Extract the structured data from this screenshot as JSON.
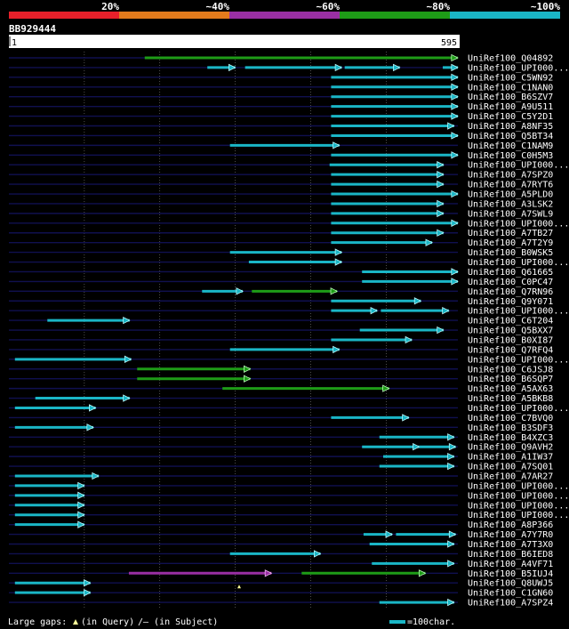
{
  "legend": {
    "segments": [
      {
        "label": "20%",
        "color": "#e8202a"
      },
      {
        "label": "~40%",
        "color": "#e37b1c"
      },
      {
        "label": "~60%",
        "color": "#9a2fa4"
      },
      {
        "label": "~80%",
        "color": "#1e9c17"
      },
      {
        "label": "~100%",
        "color": "#1ab6c6"
      }
    ]
  },
  "query": {
    "id": "BB929444",
    "start_label": "1",
    "end_label": "595",
    "length": 595
  },
  "colors": {
    "cyan": "#1ab6c6",
    "green": "#1e9c17",
    "magenta": "#9a2fa4",
    "row_line": "#101050",
    "grid": "#808080"
  },
  "hits": [
    {
      "name": "UniRef100_Q04892",
      "segs": [
        [
          180,
          595,
          "green"
        ]
      ]
    },
    {
      "name": "UniRef100_UPI000...",
      "segs": [
        [
          263,
          300,
          "cyan"
        ],
        [
          313,
          441,
          "cyan"
        ],
        [
          445,
          518,
          "cyan"
        ],
        [
          575,
          595,
          "cyan"
        ]
      ]
    },
    {
      "name": "UniRef100_C5WN92",
      "segs": [
        [
          427,
          595,
          "cyan"
        ]
      ]
    },
    {
      "name": "UniRef100_C1NAN0",
      "segs": [
        [
          427,
          595,
          "cyan"
        ]
      ]
    },
    {
      "name": "UniRef100_B6SZV7",
      "segs": [
        [
          427,
          595,
          "cyan"
        ]
      ]
    },
    {
      "name": "UniRef100_A9U511",
      "segs": [
        [
          427,
          595,
          "cyan"
        ]
      ]
    },
    {
      "name": "UniRef100_C5Y2D1",
      "segs": [
        [
          427,
          595,
          "cyan"
        ]
      ]
    },
    {
      "name": "UniRef100_A8NF35",
      "segs": [
        [
          427,
          590,
          "cyan"
        ]
      ]
    },
    {
      "name": "UniRef100_Q5BT34",
      "segs": [
        [
          427,
          595,
          "cyan"
        ]
      ]
    },
    {
      "name": "UniRef100_C1NAM9",
      "segs": [
        [
          293,
          438,
          "cyan"
        ]
      ]
    },
    {
      "name": "UniRef100_C0H5M3",
      "segs": [
        [
          427,
          595,
          "cyan"
        ]
      ]
    },
    {
      "name": "UniRef100_UPI000...",
      "segs": [
        [
          425,
          576,
          "cyan"
        ]
      ]
    },
    {
      "name": "UniRef100_A7SPZ0",
      "segs": [
        [
          427,
          576,
          "cyan"
        ]
      ]
    },
    {
      "name": "UniRef100_A7RYT6",
      "segs": [
        [
          427,
          576,
          "cyan"
        ]
      ]
    },
    {
      "name": "UniRef100_A5PLD0",
      "segs": [
        [
          427,
          595,
          "cyan"
        ]
      ]
    },
    {
      "name": "UniRef100_A3LSK2",
      "segs": [
        [
          427,
          576,
          "cyan"
        ]
      ]
    },
    {
      "name": "UniRef100_A7SWL9",
      "segs": [
        [
          427,
          576,
          "cyan"
        ]
      ]
    },
    {
      "name": "UniRef100_UPI000...",
      "segs": [
        [
          427,
          595,
          "cyan"
        ]
      ]
    },
    {
      "name": "UniRef100_A7TB27",
      "segs": [
        [
          427,
          576,
          "cyan"
        ]
      ]
    },
    {
      "name": "UniRef100_A7T2Y9",
      "segs": [
        [
          427,
          561,
          "cyan"
        ]
      ]
    },
    {
      "name": "UniRef100_B0WSK5",
      "segs": [
        [
          293,
          441,
          "cyan"
        ]
      ]
    },
    {
      "name": "UniRef100_UPI000...",
      "segs": [
        [
          318,
          441,
          "cyan"
        ]
      ]
    },
    {
      "name": "UniRef100_Q61665",
      "segs": [
        [
          468,
          595,
          "cyan"
        ]
      ]
    },
    {
      "name": "UniRef100_C0PC47",
      "segs": [
        [
          468,
          595,
          "cyan"
        ]
      ]
    },
    {
      "name": "UniRef100_Q7RN96",
      "segs": [
        [
          256,
          310,
          "cyan"
        ],
        [
          322,
          435,
          "green"
        ]
      ]
    },
    {
      "name": "UniRef100_Q9Y071",
      "segs": [
        [
          427,
          546,
          "cyan"
        ]
      ]
    },
    {
      "name": "UniRef100_UPI000...",
      "segs": [
        [
          427,
          488,
          "cyan"
        ],
        [
          493,
          583,
          "cyan"
        ]
      ]
    },
    {
      "name": "UniRef100_C6T204",
      "segs": [
        [
          51,
          160,
          "cyan"
        ]
      ]
    },
    {
      "name": "UniRef100_Q5BXX7",
      "segs": [
        [
          465,
          576,
          "cyan"
        ]
      ]
    },
    {
      "name": "UniRef100_B0XI87",
      "segs": [
        [
          427,
          534,
          "cyan"
        ]
      ]
    },
    {
      "name": "UniRef100_Q7RFQ4",
      "segs": [
        [
          293,
          438,
          "cyan"
        ]
      ]
    },
    {
      "name": "UniRef100_UPI000...",
      "segs": [
        [
          8,
          162,
          "cyan"
        ]
      ]
    },
    {
      "name": "UniRef100_C6JSJ8",
      "segs": [
        [
          170,
          320,
          "green"
        ]
      ]
    },
    {
      "name": "UniRef100_B6SQP7",
      "segs": [
        [
          170,
          320,
          "green"
        ]
      ]
    },
    {
      "name": "UniRef100_A5AX63",
      "segs": [
        [
          283,
          504,
          "green"
        ]
      ]
    },
    {
      "name": "UniRef100_A5BKB8",
      "segs": [
        [
          35,
          160,
          "cyan"
        ]
      ]
    },
    {
      "name": "UniRef100_UPI000...",
      "segs": [
        [
          8,
          115,
          "cyan"
        ]
      ]
    },
    {
      "name": "UniRef100_C7BVQ0",
      "segs": [
        [
          427,
          530,
          "cyan"
        ]
      ]
    },
    {
      "name": "UniRef100_B3SDF3",
      "segs": [
        [
          8,
          112,
          "cyan"
        ]
      ]
    },
    {
      "name": "UniRef100_B4XZC3",
      "segs": [
        [
          491,
          590,
          "cyan"
        ]
      ]
    },
    {
      "name": "UniRef100_Q9AVH2",
      "segs": [
        [
          468,
          544,
          "cyan"
        ],
        [
          544,
          592,
          "cyan"
        ]
      ]
    },
    {
      "name": "UniRef100_A1IW37",
      "segs": [
        [
          496,
          590,
          "cyan"
        ]
      ]
    },
    {
      "name": "UniRef100_A7SQ01",
      "segs": [
        [
          491,
          590,
          "cyan"
        ]
      ]
    },
    {
      "name": "UniRef100_A7AR27",
      "segs": [
        [
          8,
          119,
          "cyan"
        ]
      ]
    },
    {
      "name": "UniRef100_UPI000...",
      "segs": [
        [
          8,
          100,
          "cyan"
        ]
      ]
    },
    {
      "name": "UniRef100_UPI000...",
      "segs": [
        [
          8,
          100,
          "cyan"
        ]
      ]
    },
    {
      "name": "UniRef100_UPI000...",
      "segs": [
        [
          8,
          100,
          "cyan"
        ]
      ]
    },
    {
      "name": "UniRef100_UPI000...",
      "segs": [
        [
          8,
          100,
          "cyan"
        ]
      ]
    },
    {
      "name": "UniRef100_A8P366",
      "segs": [
        [
          8,
          100,
          "cyan"
        ]
      ]
    },
    {
      "name": "UniRef100_A7Y7R0",
      "segs": [
        [
          470,
          508,
          "cyan"
        ],
        [
          513,
          592,
          "cyan"
        ]
      ]
    },
    {
      "name": "UniRef100_A7T3X0",
      "segs": [
        [
          478,
          590,
          "cyan"
        ]
      ]
    },
    {
      "name": "UniRef100_B6IED8",
      "segs": [
        [
          293,
          413,
          "cyan"
        ]
      ]
    },
    {
      "name": "UniRef100_A4VF71",
      "segs": [
        [
          481,
          590,
          "cyan"
        ]
      ]
    },
    {
      "name": "UniRef100_B5IUJ4",
      "segs": [
        [
          159,
          348,
          "magenta"
        ],
        [
          388,
          552,
          "green"
        ]
      ]
    },
    {
      "name": "UniRef100_Q8UWJ5",
      "segs": [
        [
          8,
          108,
          "cyan"
        ]
      ]
    },
    {
      "name": "UniRef100_C1GN60",
      "segs": [
        [
          8,
          108,
          "cyan"
        ]
      ]
    },
    {
      "name": "UniRef100_A7SPZ4",
      "segs": [
        [
          491,
          590,
          "cyan"
        ]
      ]
    }
  ],
  "footer": {
    "large_gaps_prefix": "Large gaps:",
    "in_query": "(in Query)",
    "in_subject": "/– (in Subject)",
    "scale_text": "=100char."
  }
}
